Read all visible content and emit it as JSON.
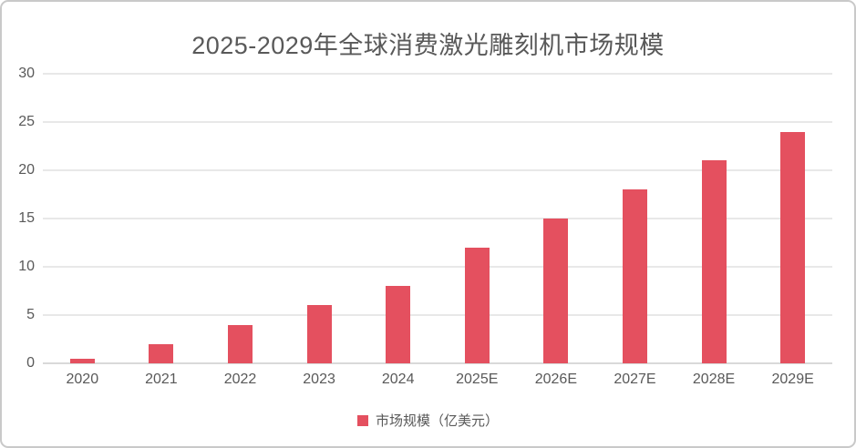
{
  "card": {
    "background_color": "#ffffff",
    "border_color": "#c9c9c9"
  },
  "chart_data": {
    "type": "bar",
    "title": "2025-2029年全球消费激光雕刻机市场规模",
    "categories": [
      "2020",
      "2021",
      "2022",
      "2023",
      "2024",
      "2025E",
      "2026E",
      "2027E",
      "2028E",
      "2029E"
    ],
    "values": [
      0.5,
      2,
      4,
      6,
      8,
      12,
      15,
      18,
      21,
      24
    ],
    "series_name": "市场规模（亿美元）",
    "xlabel": "",
    "ylabel": "",
    "ylim": [
      0,
      30
    ],
    "yticks": [
      0,
      5,
      10,
      15,
      20,
      25,
      30
    ],
    "grid": true,
    "legend_position": "bottom",
    "bar_color": "#e4505f",
    "gridline_color": "#e8e8e8",
    "axis_line_color": "#d9d9d9",
    "text_color": "#595959"
  }
}
